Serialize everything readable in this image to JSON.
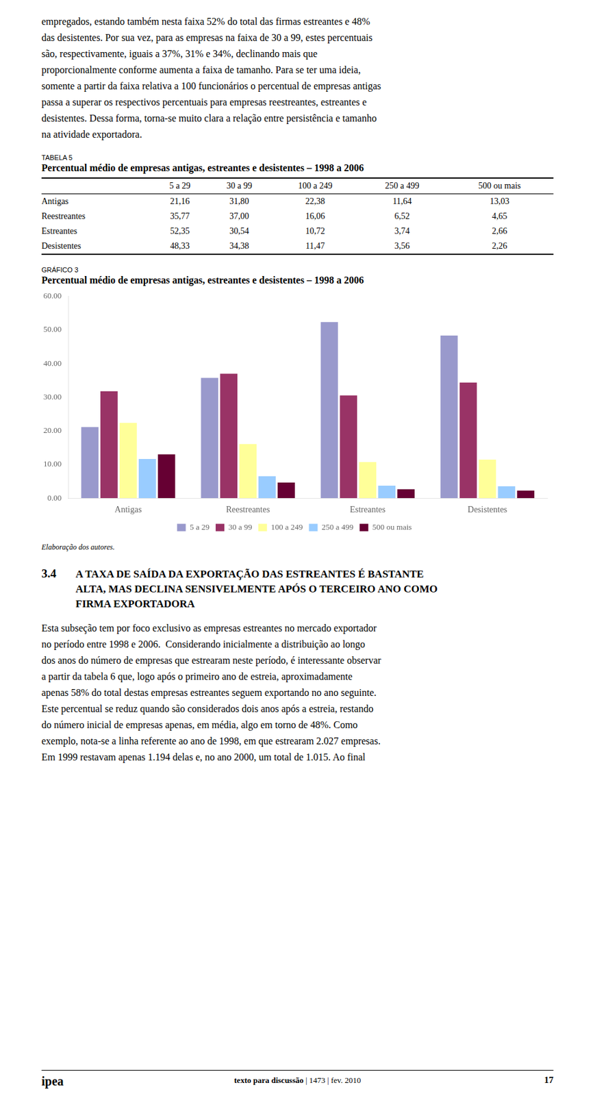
{
  "intro_lines": [
    "empregados, estando também nesta faixa 52% do total das firmas estreantes e 48%",
    "das desistentes. Por sua vez, para as empresas na faixa de 30 a 99, estes percentuais",
    "são, respectivamente, iguais a 37%, 31% e 34%, declinando mais que",
    "proporcionalmente conforme aumenta a faixa de tamanho. Para se ter uma ideia,",
    "somente a partir da faixa relativa a 100 funcionários o percentual de empresas antigas",
    "passa a superar os respectivos percentuais para empresas reestreantes, estreantes e",
    "desistentes. Dessa forma, torna-se muito clara a relação entre persistência e tamanho",
    "na atividade exportadora."
  ],
  "table": {
    "label": "TABELA 5",
    "title": "Percentual médio de empresas antigas, estreantes e desistentes – 1998 a 2006",
    "columns": [
      "5 a 29",
      "30 a 99",
      "100 a 249",
      "250 a 499",
      "500 ou mais"
    ],
    "rows": [
      {
        "label": "Antigas",
        "values": [
          21.16,
          31.8,
          22.38,
          11.64,
          13.03
        ],
        "value_labels": [
          "21,16",
          "31,80",
          "22,38",
          "11,64",
          "13,03"
        ]
      },
      {
        "label": "Reestreantes",
        "values": [
          35.77,
          37.0,
          16.06,
          6.52,
          4.65
        ],
        "value_labels": [
          "35,77",
          "37,00",
          "16,06",
          "6,52",
          "4,65"
        ]
      },
      {
        "label": "Estreantes",
        "values": [
          52.35,
          30.54,
          10.72,
          3.74,
          2.66
        ],
        "value_labels": [
          "52,35",
          "30,54",
          "10,72",
          "3,74",
          "2,66"
        ]
      },
      {
        "label": "Desistentes",
        "values": [
          48.33,
          34.38,
          11.47,
          3.56,
          2.26
        ],
        "value_labels": [
          "48,33",
          "34,38",
          "11,47",
          "3,56",
          "2,26"
        ]
      }
    ]
  },
  "chart_label": "GRÁFICO 3",
  "chart_data": {
    "type": "bar",
    "title": "Percentual médio de empresas antigas, estreantes e desistentes – 1998 a 2006",
    "categories": [
      "Antigas",
      "Reestreantes",
      "Estreantes",
      "Desistentes"
    ],
    "series": [
      {
        "name": "5 a 29",
        "color": "#9999cc",
        "values": [
          21.16,
          35.77,
          52.35,
          48.33
        ]
      },
      {
        "name": "30 a 99",
        "color": "#993366",
        "values": [
          31.8,
          37.0,
          30.54,
          34.38
        ]
      },
      {
        "name": "100 a 249",
        "color": "#ffff99",
        "values": [
          22.38,
          16.06,
          10.72,
          11.47
        ]
      },
      {
        "name": "250 a 499",
        "color": "#99ccff",
        "values": [
          11.64,
          6.52,
          3.74,
          3.56
        ]
      },
      {
        "name": "500 ou mais",
        "color": "#660033",
        "values": [
          13.03,
          4.65,
          2.66,
          2.26
        ]
      }
    ],
    "ylim": [
      0,
      60
    ],
    "yticks": [
      {
        "value": 0,
        "label": "0.00"
      },
      {
        "value": 10,
        "label": "10.00"
      },
      {
        "value": 20,
        "label": "20.00"
      },
      {
        "value": 30,
        "label": "30.00"
      },
      {
        "value": 40,
        "label": "40.00"
      },
      {
        "value": 50,
        "label": "50.00"
      },
      {
        "value": 60,
        "label": "60.00"
      }
    ],
    "grid": false,
    "legend": "bottom"
  },
  "source_note": "Elaboração dos autores.",
  "section": {
    "number": "3.4",
    "title_lines": [
      "A TAXA DE SAÍDA DA EXPORTAÇÃO DAS ESTREANTES É BASTANTE",
      "ALTA, MAS DECLINA SENSIVELMENTE APÓS O TERCEIRO ANO COMO",
      "FIRMA EXPORTADORA"
    ]
  },
  "body_lines": [
    "Esta subseção tem por foco exclusivo as empresas estreantes no mercado exportador",
    "no período entre 1998 e 2006.  Considerando inicialmente a distribuição ao longo",
    "dos anos do número de empresas que estrearam neste período, é interessante observar",
    "a partir da tabela 6 que, logo após o primeiro ano de estreia, aproximadamente",
    "apenas 58% do total destas empresas estreantes seguem exportando no ano seguinte.",
    "Este percentual se reduz quando são considerados dois anos após a estreia, restando",
    "do número inicial de empresas apenas, em média, algo em torno de 48%. Como",
    "exemplo, nota-se a linha referente ao ano de 1998, em que estrearam 2.027 empresas.",
    "Em 1999 restavam apenas 1.194 delas e, no ano 2000, um total de 1.015. Ao final"
  ],
  "footer": {
    "left": "ipea",
    "center_bold": "texto para discussão",
    "center_rest": " | 1473 | fev. 2010",
    "right": "17"
  }
}
